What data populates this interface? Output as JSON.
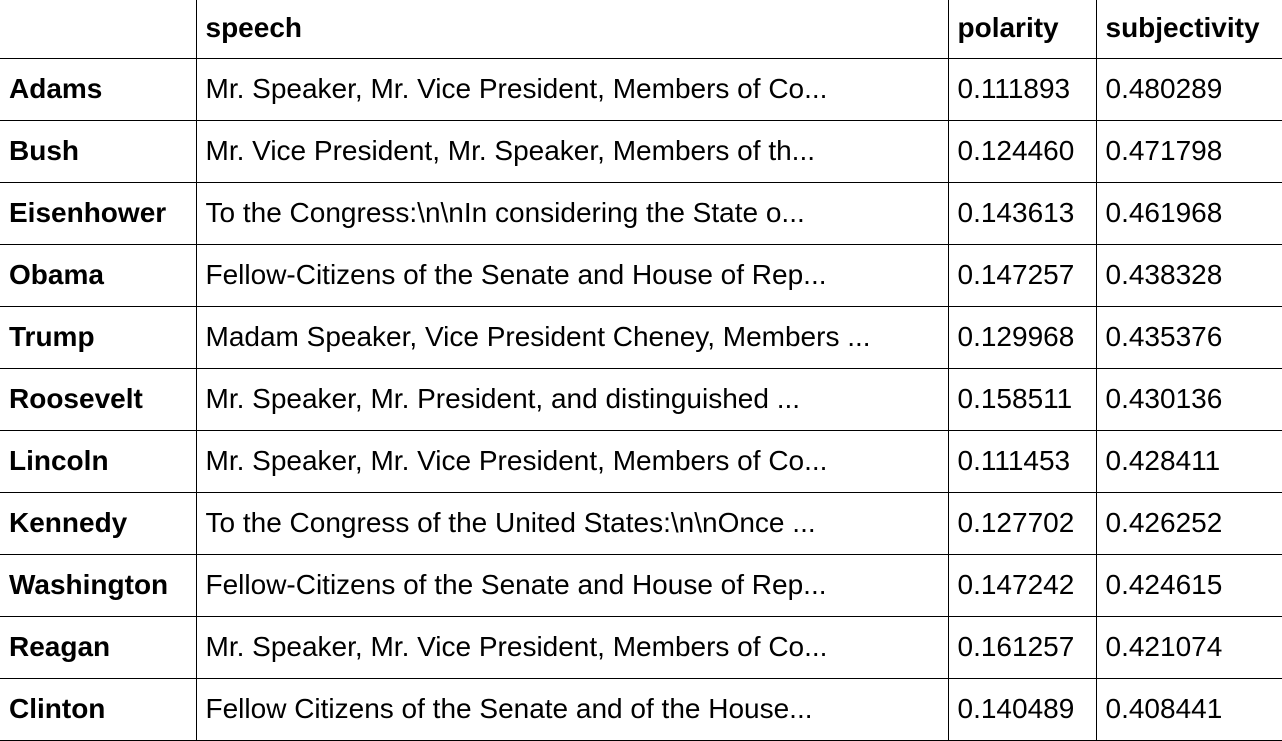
{
  "table": {
    "columns": [
      "",
      "speech",
      "polarity",
      "subjectivity"
    ],
    "rows": [
      {
        "name": "Adams",
        "speech": "Mr. Speaker, Mr. Vice President, Members of Co...",
        "polarity": "0.111893",
        "subjectivity": "0.480289"
      },
      {
        "name": "Bush",
        "speech": "Mr. Vice President, Mr. Speaker, Members of th...",
        "polarity": "0.124460",
        "subjectivity": "0.471798"
      },
      {
        "name": "Eisenhower",
        "speech": "To the Congress:\\n\\nIn considering the State o...",
        "polarity": "0.143613",
        "subjectivity": "0.461968"
      },
      {
        "name": "Obama",
        "speech": "Fellow-Citizens of the Senate and House of Rep...",
        "polarity": "0.147257",
        "subjectivity": "0.438328"
      },
      {
        "name": "Trump",
        "speech": "Madam Speaker, Vice President Cheney, Members ...",
        "polarity": "0.129968",
        "subjectivity": "0.435376"
      },
      {
        "name": "Roosevelt",
        "speech": "Mr. Speaker, Mr. President, and distinguished ...",
        "polarity": "0.158511",
        "subjectivity": "0.430136"
      },
      {
        "name": "Lincoln",
        "speech": "Mr. Speaker, Mr. Vice President, Members of Co...",
        "polarity": "0.111453",
        "subjectivity": "0.428411"
      },
      {
        "name": "Kennedy",
        "speech": "To the Congress of the United States:\\n\\nOnce ...",
        "polarity": "0.127702",
        "subjectivity": "0.426252"
      },
      {
        "name": "Washington",
        "speech": "Fellow-Citizens of the Senate and House of Rep...",
        "polarity": "0.147242",
        "subjectivity": "0.424615"
      },
      {
        "name": "Reagan",
        "speech": "Mr. Speaker, Mr. Vice President, Members of Co...",
        "polarity": "0.161257",
        "subjectivity": "0.421074"
      },
      {
        "name": "Clinton",
        "speech": "Fellow Citizens of the Senate and of the House...",
        "polarity": "0.140489",
        "subjectivity": "0.408441"
      }
    ]
  }
}
